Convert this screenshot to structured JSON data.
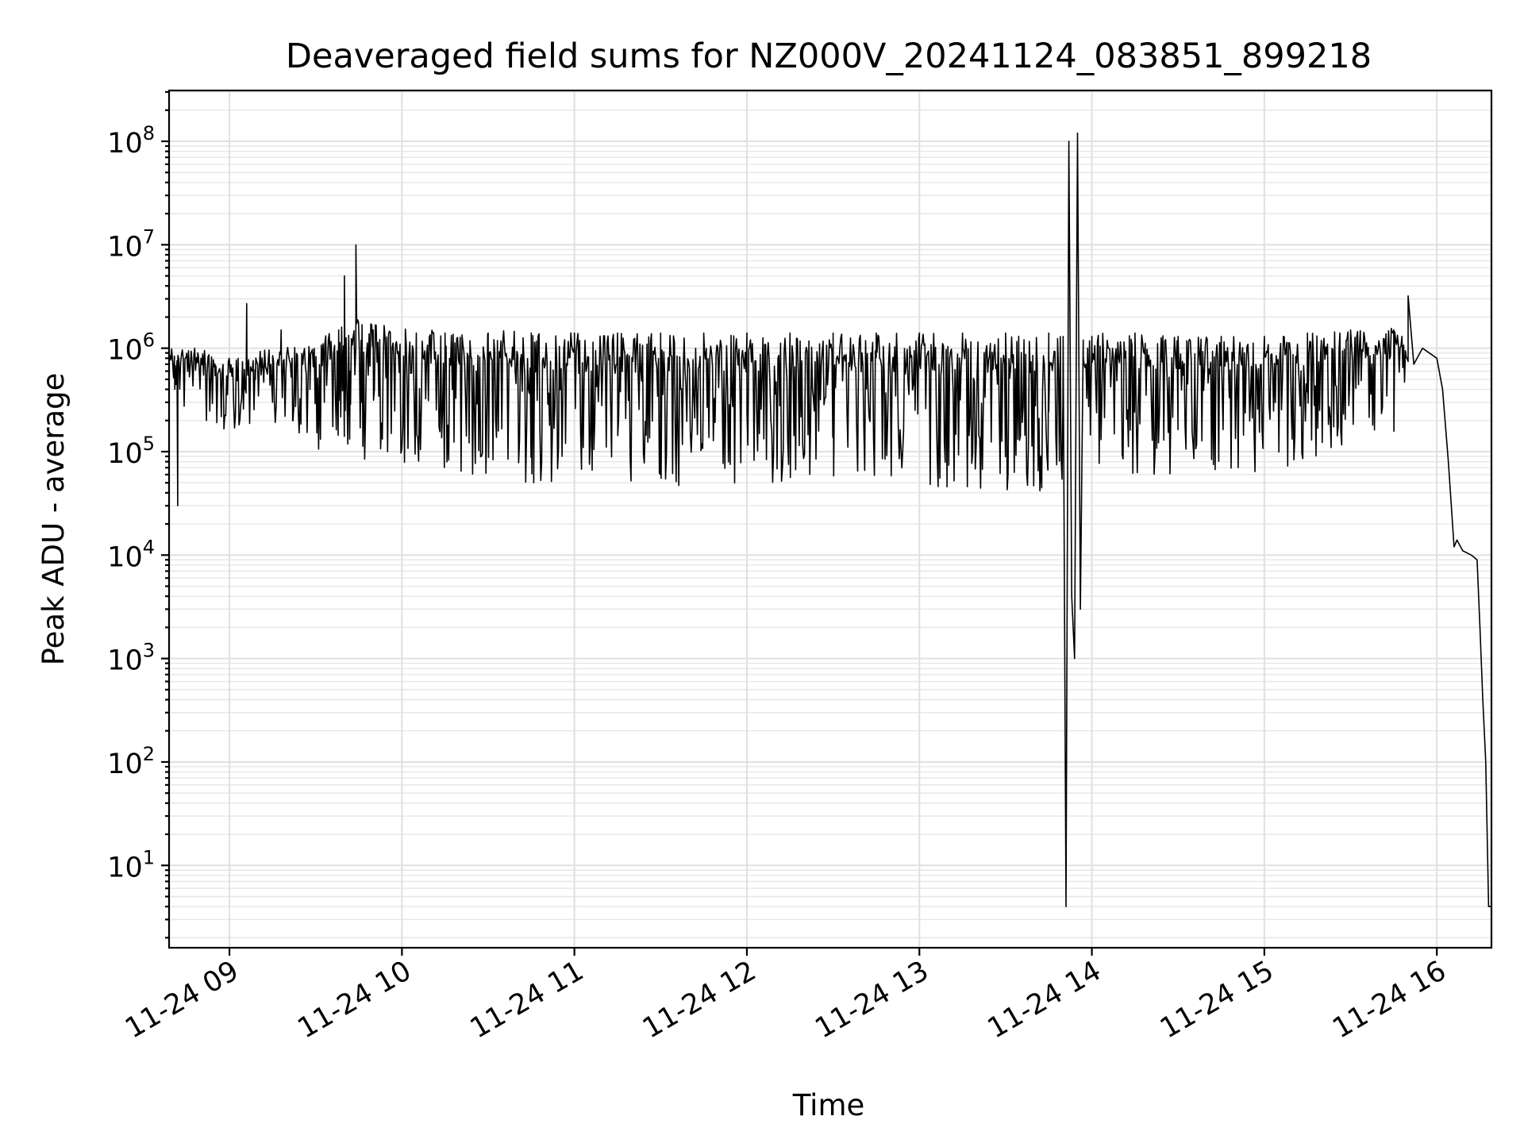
{
  "chart_data": {
    "type": "line",
    "title": "Deaveraged field sums for NZ000V_20241124_083851_899218",
    "xlabel": "Time",
    "ylabel": "Peak ADU - average",
    "x_scale": "time",
    "y_scale": "log",
    "xlim": [
      "2024-11-24 08:39",
      "2024-11-24 16:19"
    ],
    "ylim": [
      1.6,
      310000000
    ],
    "x_ticks": [
      "2024-11-24 09:00",
      "2024-11-24 10:00",
      "2024-11-24 11:00",
      "2024-11-24 12:00",
      "2024-11-24 13:00",
      "2024-11-24 14:00",
      "2024-11-24 15:00",
      "2024-11-24 16:00"
    ],
    "x_tick_labels": [
      "11-24 09",
      "11-24 10",
      "11-24 11",
      "11-24 12",
      "11-24 13",
      "11-24 14",
      "11-24 15",
      "11-24 16"
    ],
    "y_ticks": [
      10,
      100,
      1000,
      10000,
      100000,
      1000000,
      10000000,
      100000000
    ],
    "y_tick_labels": [
      {
        "base": "10",
        "exp": "1"
      },
      {
        "base": "10",
        "exp": "2"
      },
      {
        "base": "10",
        "exp": "3"
      },
      {
        "base": "10",
        "exp": "4"
      },
      {
        "base": "10",
        "exp": "5"
      },
      {
        "base": "10",
        "exp": "6"
      },
      {
        "base": "10",
        "exp": "7"
      },
      {
        "base": "10",
        "exp": "8"
      }
    ],
    "grid": "major and minor",
    "line_color": "#000000",
    "series": [
      {
        "x": [
          "2024-11-24 08:39",
          "2024-11-24 08:41",
          "2024-11-24 08:42",
          "2024-11-24 08:44",
          "2024-11-24 08:46",
          "2024-11-24 08:49",
          "2024-11-24 08:52",
          "2024-11-24 08:55",
          "2024-11-24 08:58",
          "2024-11-24 09:03",
          "2024-11-24 09:06",
          "2024-11-24 09:09",
          "2024-11-24 09:15",
          "2024-11-24 09:18",
          "2024-11-24 09:22",
          "2024-11-24 09:28",
          "2024-11-24 09:33",
          "2024-11-24 09:38",
          "2024-11-24 09:40",
          "2024-11-24 09:42",
          "2024-11-24 09:44",
          "2024-11-24 09:46",
          "2024-11-24 09:50",
          "2024-11-24 09:55",
          "2024-11-24 10:05",
          "2024-11-24 10:15",
          "2024-11-24 10:30",
          "2024-11-24 10:45",
          "2024-11-24 11:00",
          "2024-11-24 11:15",
          "2024-11-24 11:30",
          "2024-11-24 11:45",
          "2024-11-24 12:00",
          "2024-11-24 12:15",
          "2024-11-24 12:30",
          "2024-11-24 12:45",
          "2024-11-24 13:00",
          "2024-11-24 13:15",
          "2024-11-24 13:30",
          "2024-11-24 13:45",
          "2024-11-24 13:50",
          "2024-11-24 13:51",
          "2024-11-24 13:52",
          "2024-11-24 13:53",
          "2024-11-24 13:54",
          "2024-11-24 13:55",
          "2024-11-24 13:56",
          "2024-11-24 13:57",
          "2024-11-24 14:00",
          "2024-11-24 14:15",
          "2024-11-24 14:30",
          "2024-11-24 14:45",
          "2024-11-24 15:00",
          "2024-11-24 15:15",
          "2024-11-24 15:30",
          "2024-11-24 15:45",
          "2024-11-24 15:50",
          "2024-11-24 15:52",
          "2024-11-24 15:55",
          "2024-11-24 16:00",
          "2024-11-24 16:02",
          "2024-11-24 16:04",
          "2024-11-24 16:06",
          "2024-11-24 16:07",
          "2024-11-24 16:09",
          "2024-11-24 16:12",
          "2024-11-24 16:14",
          "2024-11-24 16:15",
          "2024-11-24 16:16",
          "2024-11-24 16:17",
          "2024-11-24 16:18",
          "2024-11-24 16:19"
        ],
        "y": [
          900000,
          400000,
          30000,
          700000,
          600000,
          900000,
          200000,
          700000,
          300000,
          600000,
          2700000,
          500000,
          300000,
          1500000,
          200000,
          400000,
          300000,
          1500000,
          5000000,
          600000,
          10000000,
          300000,
          1500000,
          100000,
          1400000,
          1400000,
          1400000,
          1400000,
          1400000,
          1400000,
          1400000,
          1400000,
          1400000,
          1400000,
          1400000,
          1400000,
          1400000,
          1400000,
          1400000,
          1400000,
          1300000,
          4,
          100000000,
          4000,
          1000,
          120000000,
          3000,
          1200000,
          1300000,
          1400000,
          1300000,
          1300000,
          1300000,
          1400000,
          1500000,
          1500000,
          3200000,
          700000,
          1000000,
          800000,
          400000,
          80000,
          12000,
          14000,
          11000,
          10000,
          9000,
          2000,
          400,
          100,
          4,
          4
        ],
        "band": {
          "x": [
            "2024-11-24 08:39",
            "2024-11-24 08:50",
            "2024-11-24 09:00",
            "2024-11-24 09:15",
            "2024-11-24 09:30",
            "2024-11-24 09:45",
            "2024-11-24 10:00",
            "2024-11-24 10:15",
            "2024-11-24 10:30",
            "2024-11-24 10:45",
            "2024-11-24 11:00",
            "2024-11-24 11:30",
            "2024-11-24 12:00",
            "2024-11-24 12:30",
            "2024-11-24 13:00",
            "2024-11-24 13:30",
            "2024-11-24 13:48",
            "2024-11-24 14:00",
            "2024-11-24 14:15",
            "2024-11-24 14:30",
            "2024-11-24 14:45",
            "2024-11-24 15:00",
            "2024-11-24 15:15",
            "2024-11-24 15:30",
            "2024-11-24 15:45",
            "2024-11-24 15:50"
          ],
          "low": [
            300000,
            200000,
            150000,
            200000,
            100000,
            80000,
            80000,
            60000,
            55000,
            50000,
            45000,
            45000,
            45000,
            45000,
            45000,
            40000,
            40000,
            60000,
            60000,
            60000,
            60000,
            60000,
            80000,
            100000,
            120000,
            150000
          ],
          "high": [
            1000000,
            1000000,
            800000,
            1000000,
            1200000,
            2000000,
            1600000,
            1500000,
            1500000,
            1500000,
            1400000,
            1400000,
            1400000,
            1400000,
            1400000,
            1350000,
            1350000,
            1400000,
            1400000,
            1300000,
            1300000,
            1300000,
            1400000,
            1500000,
            1600000,
            1300000
          ]
        }
      }
    ]
  }
}
